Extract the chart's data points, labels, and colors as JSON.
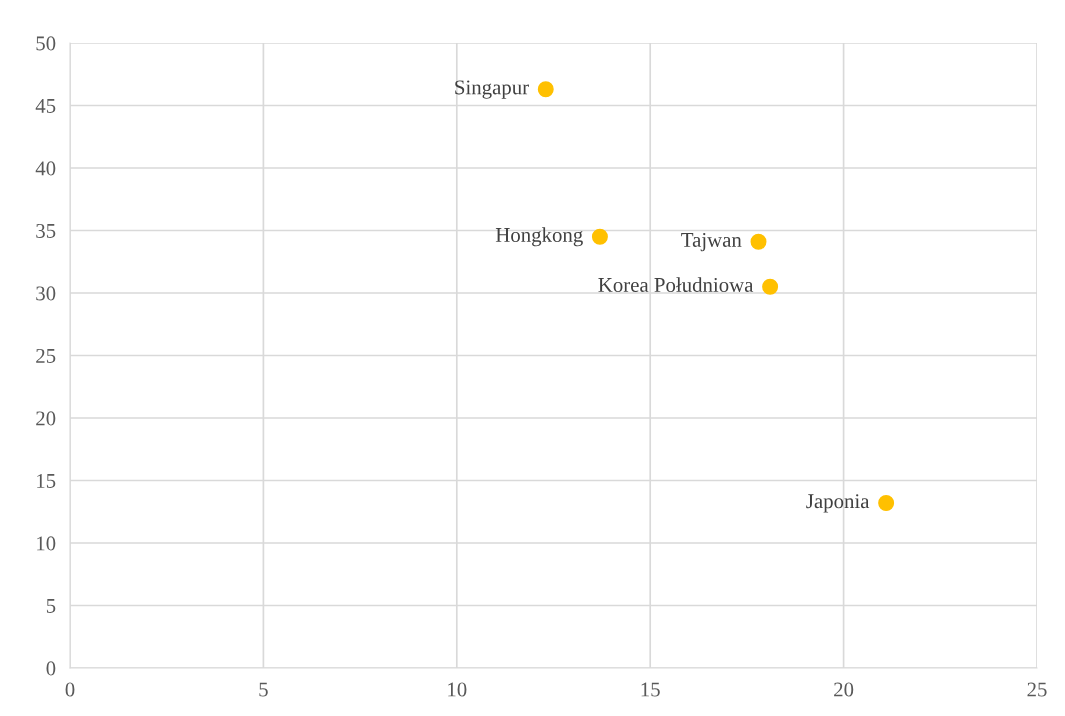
{
  "chart_data": {
    "type": "scatter",
    "x": [
      12.3,
      13.7,
      17.8,
      18.1,
      21.1
    ],
    "series": [
      {
        "color": "#ffc000",
        "values": [
          46.3,
          34.5,
          34.1,
          30.5,
          13.2
        ]
      }
    ],
    "annotations": [
      {
        "text": "Singapur",
        "x": 12.3,
        "y": 46.3
      },
      {
        "text": "Hongkong",
        "x": 13.7,
        "y": 34.5
      },
      {
        "text": "Tajwan",
        "x": 17.8,
        "y": 34.1
      },
      {
        "text": "Korea Południowa",
        "x": 18.1,
        "y": 30.5
      },
      {
        "text": "Japonia",
        "x": 21.1,
        "y": 13.2
      }
    ],
    "xlim": [
      0,
      25
    ],
    "xticks": [
      0,
      5,
      10,
      15,
      20,
      25
    ],
    "ylim": [
      0,
      50
    ],
    "yticks": [
      0,
      5,
      10,
      15,
      20,
      25,
      30,
      35,
      40,
      45,
      50
    ],
    "grid": true,
    "marker": "circle"
  }
}
